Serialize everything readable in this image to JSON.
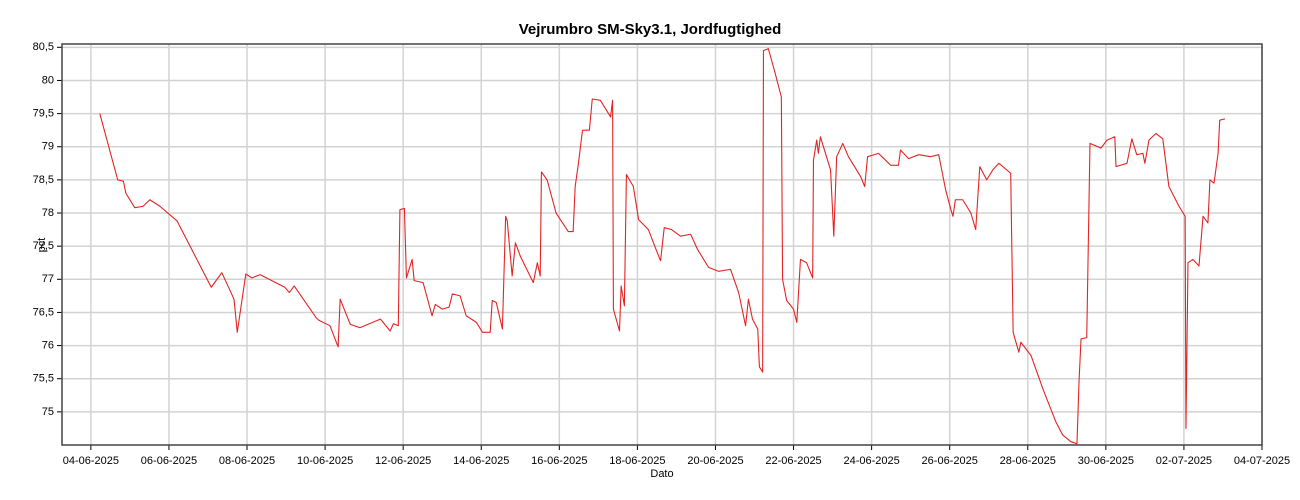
{
  "chart_data": {
    "type": "line",
    "title": "Vejrumbro SM-Sky3.1, Jordfugtighed",
    "x_label": "Dato",
    "y_label": "pct",
    "grid": true,
    "xlim": [
      "2025-06-03T06:15",
      "2025-07-04T00:00"
    ],
    "ylim": [
      74.5,
      80.55
    ],
    "xticks": [
      {
        "value": "2025-06-04T00:00",
        "label": "04-06-2025"
      },
      {
        "value": "2025-06-06T00:00",
        "label": "06-06-2025"
      },
      {
        "value": "2025-06-08T00:00",
        "label": "08-06-2025"
      },
      {
        "value": "2025-06-10T00:00",
        "label": "10-06-2025"
      },
      {
        "value": "2025-06-12T00:00",
        "label": "12-06-2025"
      },
      {
        "value": "2025-06-14T00:00",
        "label": "14-06-2025"
      },
      {
        "value": "2025-06-16T00:00",
        "label": "16-06-2025"
      },
      {
        "value": "2025-06-18T00:00",
        "label": "18-06-2025"
      },
      {
        "value": "2025-06-20T00:00",
        "label": "20-06-2025"
      },
      {
        "value": "2025-06-22T00:00",
        "label": "22-06-2025"
      },
      {
        "value": "2025-06-24T00:00",
        "label": "24-06-2025"
      },
      {
        "value": "2025-06-26T00:00",
        "label": "26-06-2025"
      },
      {
        "value": "2025-06-28T00:00",
        "label": "28-06-2025"
      },
      {
        "value": "2025-06-30T00:00",
        "label": "30-06-2025"
      },
      {
        "value": "2025-07-02T00:00",
        "label": "02-07-2025"
      },
      {
        "value": "2025-07-04T00:00",
        "label": "04-07-2025"
      }
    ],
    "yticks": [
      75,
      {
        "value": 75.5,
        "label": "75,5"
      },
      76,
      {
        "value": 76.5,
        "label": "76,5"
      },
      77,
      {
        "value": 77.5,
        "label": "77,5"
      },
      78,
      {
        "value": 78.5,
        "label": "78,5"
      },
      79,
      {
        "value": 79.5,
        "label": "79,5"
      },
      80,
      {
        "value": 80.5,
        "label": "80,5"
      }
    ],
    "x": [
      "2025-06-04T05:30",
      "2025-06-04T16:30",
      "2025-06-04T20:00",
      "2025-06-04T21:30",
      "2025-06-05T03:00",
      "2025-06-05T08:00",
      "2025-06-05T12:15",
      "2025-06-05T18:30",
      "2025-06-06T05:00",
      "2025-06-07T02:00",
      "2025-06-07T08:30",
      "2025-06-07T16:00",
      "2025-06-07T18:00",
      "2025-06-07T23:15",
      "2025-06-08T03:00",
      "2025-06-08T08:00",
      "2025-06-08T23:15",
      "2025-06-09T02:00",
      "2025-06-09T05:00",
      "2025-06-09T18:30",
      "2025-06-09T20:15",
      "2025-06-10T03:00",
      "2025-06-10T08:00",
      "2025-06-10T09:15",
      "2025-06-10T15:30",
      "2025-06-10T21:30",
      "2025-06-11T10:00",
      "2025-06-11T16:00",
      "2025-06-11T18:00",
      "2025-06-11T21:00",
      "2025-06-11T22:00",
      "2025-06-12T00:45",
      "2025-06-12T02:00",
      "2025-06-12T05:30",
      "2025-06-12T06:45",
      "2025-06-12T12:15",
      "2025-06-12T17:45",
      "2025-06-12T19:45",
      "2025-06-13T00:00",
      "2025-06-13T04:15",
      "2025-06-13T06:15",
      "2025-06-13T11:00",
      "2025-06-13T14:45",
      "2025-06-13T21:00",
      "2025-06-14T00:45",
      "2025-06-14T05:30",
      "2025-06-14T06:45",
      "2025-06-14T09:15",
      "2025-06-14T13:00",
      "2025-06-14T15:00",
      "2025-06-14T16:00",
      "2025-06-14T19:00",
      "2025-06-14T21:00",
      "2025-06-15T00:00",
      "2025-06-15T08:00",
      "2025-06-15T10:30",
      "2025-06-15T12:15",
      "2025-06-15T13:00",
      "2025-06-15T16:30",
      "2025-06-15T22:00",
      "2025-06-16T02:00",
      "2025-06-16T05:30",
      "2025-06-16T08:30",
      "2025-06-16T09:45",
      "2025-06-16T11:45",
      "2025-06-16T14:15",
      "2025-06-16T18:30",
      "2025-06-16T20:15",
      "2025-06-17T01:15",
      "2025-06-17T07:30",
      "2025-06-17T08:45",
      "2025-06-17T09:15",
      "2025-06-17T13:00",
      "2025-06-17T14:00",
      "2025-06-17T16:00",
      "2025-06-17T17:15",
      "2025-06-17T21:30",
      "2025-06-18T00:45",
      "2025-06-18T06:45",
      "2025-06-18T12:15",
      "2025-06-18T14:15",
      "2025-06-18T16:30",
      "2025-06-18T21:00",
      "2025-06-19T02:30",
      "2025-06-19T08:45",
      "2025-06-19T13:00",
      "2025-06-19T19:45",
      "2025-06-20T02:00",
      "2025-06-20T09:15",
      "2025-06-20T14:15",
      "2025-06-20T18:30",
      "2025-06-20T20:15",
      "2025-06-20T22:45",
      "2025-06-21T02:00",
      "2025-06-21T03:00",
      "2025-06-21T05:00",
      "2025-06-21T05:30",
      "2025-06-21T08:30",
      "2025-06-21T12:15",
      "2025-06-21T16:30",
      "2025-06-21T17:15",
      "2025-06-21T19:45",
      "2025-06-22T00:00",
      "2025-06-22T02:00",
      "2025-06-22T04:15",
      "2025-06-22T08:00",
      "2025-06-22T11:45",
      "2025-06-22T12:15",
      "2025-06-22T14:15",
      "2025-06-22T15:15",
      "2025-06-22T16:30",
      "2025-06-22T22:45",
      "2025-06-23T00:45",
      "2025-06-23T02:30",
      "2025-06-23T06:15",
      "2025-06-23T09:45",
      "2025-06-23T17:15",
      "2025-06-23T19:45",
      "2025-06-23T21:30",
      "2025-06-24T04:15",
      "2025-06-24T11:45",
      "2025-06-24T16:30",
      "2025-06-24T17:45",
      "2025-06-24T22:45",
      "2025-06-25T05:00",
      "2025-06-25T12:15",
      "2025-06-25T17:15",
      "2025-06-25T21:30",
      "2025-06-26T00:45",
      "2025-06-26T02:00",
      "2025-06-26T03:30",
      "2025-06-26T08:00",
      "2025-06-26T13:00",
      "2025-06-26T16:00",
      "2025-06-26T18:30",
      "2025-06-26T22:45",
      "2025-06-27T02:30",
      "2025-06-27T06:15",
      "2025-06-27T13:30",
      "2025-06-27T15:00",
      "2025-06-27T18:30",
      "2025-06-27T19:45",
      "2025-06-28T02:00",
      "2025-06-28T09:15",
      "2025-06-28T17:15",
      "2025-06-28T21:30",
      "2025-06-29T02:30",
      "2025-06-29T06:15",
      "2025-06-29T07:30",
      "2025-06-29T08:45",
      "2025-06-29T12:15",
      "2025-06-29T14:15",
      "2025-06-29T21:00",
      "2025-06-30T00:45",
      "2025-06-30T05:30",
      "2025-06-30T06:15",
      "2025-06-30T13:00",
      "2025-06-30T16:00",
      "2025-06-30T19:00",
      "2025-06-30T22:45",
      "2025-07-01T00:00",
      "2025-07-01T02:30",
      "2025-07-01T06:45",
      "2025-07-01T11:00",
      "2025-07-01T14:45",
      "2025-07-01T21:00",
      "2025-07-02T00:45",
      "2025-07-02T01:15",
      "2025-07-02T02:30",
      "2025-07-02T05:30",
      "2025-07-02T09:15",
      "2025-07-02T11:45",
      "2025-07-02T14:45",
      "2025-07-02T16:00",
      "2025-07-02T18:30",
      "2025-07-02T21:00",
      "2025-07-02T22:00",
      "2025-07-03T01:15"
    ],
    "series": [
      {
        "color": "#e32424",
        "values": [
          79.5,
          78.5,
          78.48,
          78.3,
          78.08,
          78.1,
          78.2,
          78.1,
          77.88,
          76.88,
          77.1,
          76.7,
          76.2,
          77.08,
          77.02,
          77.07,
          76.88,
          76.8,
          76.9,
          76.42,
          76.38,
          76.3,
          75.98,
          76.7,
          76.32,
          76.27,
          76.4,
          76.22,
          76.33,
          76.3,
          78.05,
          78.07,
          77.02,
          77.3,
          76.98,
          76.95,
          76.45,
          76.62,
          76.55,
          76.58,
          76.78,
          76.75,
          76.45,
          76.35,
          76.2,
          76.2,
          76.68,
          76.65,
          76.25,
          77.95,
          77.88,
          77.05,
          77.55,
          77.35,
          76.95,
          77.25,
          77.05,
          78.62,
          78.5,
          78.0,
          77.85,
          77.72,
          77.72,
          78.4,
          78.75,
          79.25,
          79.25,
          79.72,
          79.7,
          79.45,
          79.7,
          76.55,
          76.22,
          76.9,
          76.6,
          78.58,
          78.4,
          77.9,
          77.75,
          77.4,
          77.28,
          77.78,
          77.75,
          77.65,
          77.68,
          77.45,
          77.18,
          77.12,
          77.15,
          76.8,
          76.3,
          76.7,
          76.4,
          76.25,
          75.68,
          75.6,
          80.45,
          80.48,
          80.15,
          79.75,
          77.0,
          76.68,
          76.55,
          76.35,
          77.3,
          77.25,
          77.02,
          78.8,
          79.1,
          78.9,
          79.15,
          78.65,
          77.65,
          78.85,
          79.05,
          78.85,
          78.55,
          78.4,
          78.85,
          78.9,
          78.72,
          78.72,
          78.95,
          78.82,
          78.88,
          78.85,
          78.88,
          78.35,
          78.05,
          77.95,
          78.2,
          78.2,
          78.0,
          77.75,
          78.7,
          78.5,
          78.65,
          78.75,
          78.6,
          76.2,
          75.9,
          76.05,
          75.85,
          75.35,
          74.85,
          74.65,
          74.55,
          74.52,
          75.45,
          76.1,
          76.12,
          79.05,
          78.98,
          79.1,
          79.15,
          78.7,
          78.75,
          79.12,
          78.88,
          78.9,
          78.75,
          79.1,
          79.2,
          79.12,
          78.4,
          78.1,
          77.95,
          74.75,
          77.25,
          77.3,
          77.2,
          77.95,
          77.85,
          78.5,
          78.45,
          78.9,
          79.4,
          79.42
        ]
      }
    ]
  }
}
